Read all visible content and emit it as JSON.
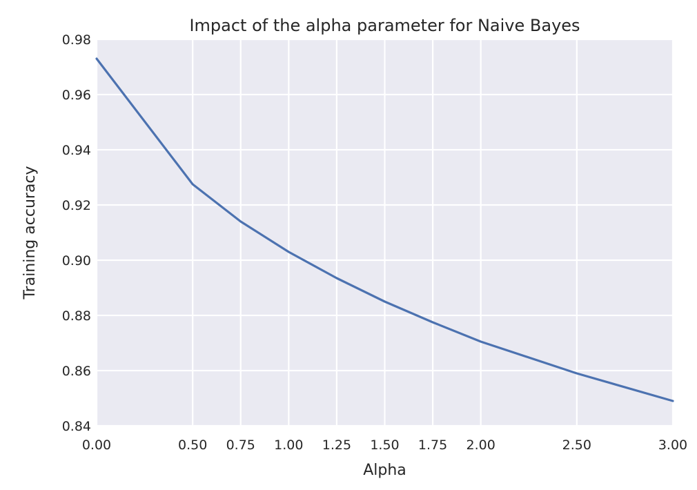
{
  "chart_data": {
    "type": "line",
    "title": "Impact of the alpha parameter for Naive Bayes",
    "xlabel": "Alpha",
    "ylabel": "Training accuracy",
    "xlim": [
      0,
      3
    ],
    "ylim": [
      0.84,
      0.98
    ],
    "xticks": [
      0,
      0.5,
      0.75,
      1.0,
      1.25,
      1.5,
      1.75,
      2.0,
      2.5,
      3.0
    ],
    "xtick_labels": [
      "0.00",
      "0.50",
      "0.75",
      "1.00",
      "1.25",
      "1.50",
      "1.75",
      "2.00",
      "2.50",
      "3.00"
    ],
    "yticks": [
      0.84,
      0.86,
      0.88,
      0.9,
      0.92,
      0.94,
      0.96,
      0.98
    ],
    "ytick_labels": [
      "0.84",
      "0.86",
      "0.88",
      "0.90",
      "0.92",
      "0.94",
      "0.96",
      "0.98"
    ],
    "grid": true,
    "colors": {
      "background": "#eaeaf2",
      "grid": "#ffffff",
      "series": "#4c72b0"
    },
    "series": [
      {
        "x": [
          0,
          0.5,
          0.75,
          1.0,
          1.25,
          1.5,
          1.75,
          2.0,
          2.5,
          3.0
        ],
        "y": [
          0.973,
          0.9275,
          0.914,
          0.903,
          0.8935,
          0.885,
          0.8775,
          0.8705,
          0.859,
          0.849
        ]
      }
    ]
  }
}
